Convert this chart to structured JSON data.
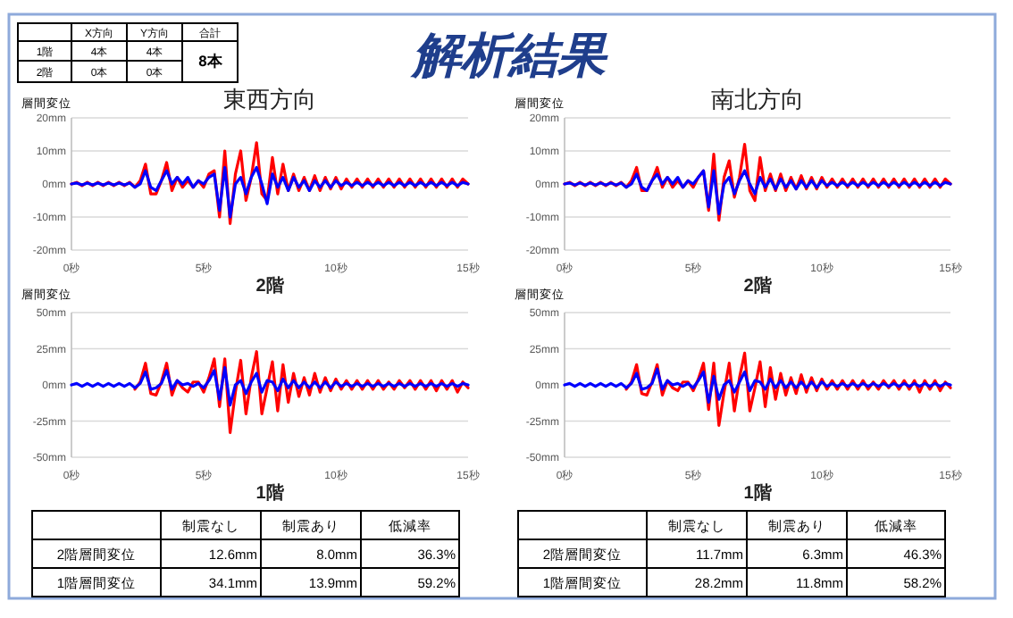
{
  "chart_data": [
    {
      "type": "other",
      "title": "解析結果",
      "categories": [
        "X方向",
        "Y方向",
        "合計"
      ],
      "y_categories": [
        "1階",
        "2階"
      ],
      "cell_labels": [
        [
          "4本",
          "4本",
          "8本"
        ],
        [
          "0本",
          "0本",
          null
        ]
      ]
    },
    {
      "type": "line",
      "title": "東西方向",
      "xlabel": "2階",
      "ylabel": "層間変位",
      "grid": "y",
      "xlim": [
        0,
        15
      ],
      "ylim": [
        -20,
        20
      ],
      "xticks": [
        {
          "value": 0,
          "label": "0秒"
        },
        {
          "value": 5,
          "label": "5秒"
        },
        {
          "value": 10,
          "label": "10秒"
        },
        {
          "value": 15,
          "label": "15秒"
        }
      ],
      "yticks": [
        {
          "value": -20,
          "label": "-20mm"
        },
        {
          "value": -10,
          "label": "-10mm"
        },
        {
          "value": 0,
          "label": "0mm"
        },
        {
          "value": 10,
          "label": "10mm"
        },
        {
          "value": 20,
          "label": "20mm"
        }
      ],
      "x": [
        0,
        0.2,
        0.4,
        0.6,
        0.8,
        1,
        1.2,
        1.4,
        1.6,
        1.8,
        2,
        2.2,
        2.4,
        2.6,
        2.8,
        3,
        3.2,
        3.4,
        3.6,
        3.8,
        4,
        4.2,
        4.4,
        4.6,
        4.8,
        5,
        5.2,
        5.4,
        5.6,
        5.8,
        6,
        6.2,
        6.4,
        6.6,
        6.8,
        7,
        7.2,
        7.4,
        7.6,
        7.8,
        8,
        8.2,
        8.4,
        8.6,
        8.8,
        9,
        9.2,
        9.4,
        9.6,
        9.8,
        10,
        10.2,
        10.4,
        10.6,
        10.8,
        11,
        11.2,
        11.4,
        11.6,
        11.8,
        12,
        12.2,
        12.4,
        12.6,
        12.8,
        13,
        13.2,
        13.4,
        13.6,
        13.8,
        14,
        14.2,
        14.4,
        14.6,
        14.8,
        15
      ],
      "series": [
        {
          "color": "#ff0000",
          "values": [
            0,
            0.5,
            -0.5,
            0.5,
            -0.5,
            0.5,
            -0.5,
            0.5,
            -0.5,
            0.5,
            -0.5,
            0.5,
            -1,
            1,
            6,
            -3,
            -3,
            1,
            6.5,
            -2,
            2,
            -1,
            1,
            -1,
            1,
            -1,
            3,
            4,
            -10,
            10,
            -12,
            3,
            10,
            -5,
            2,
            12.5,
            -3,
            -5,
            8,
            -3,
            6,
            -2,
            3,
            -2,
            2,
            -2,
            2.5,
            -2,
            2,
            -1.5,
            2,
            -1.5,
            1.5,
            -1,
            1.5,
            -1,
            1.5,
            -1,
            1.5,
            -1,
            1.5,
            -1,
            1.5,
            -1,
            1.5,
            -1,
            1.5,
            -1,
            1.5,
            -1,
            1.5,
            -1,
            1.5,
            -1,
            1.5,
            0
          ]
        },
        {
          "color": "#0000ff",
          "values": [
            0,
            0.3,
            -0.3,
            0.3,
            -0.3,
            0.3,
            -0.3,
            0.3,
            -0.3,
            0.3,
            -0.3,
            0.3,
            -1,
            0,
            4,
            -1,
            -2,
            1,
            4,
            0,
            2,
            0,
            2,
            -1,
            1,
            0,
            2,
            3,
            -8,
            5,
            -10,
            0,
            2,
            -3,
            2,
            5,
            0,
            -6,
            3,
            -1,
            2,
            -2,
            2,
            -1,
            1,
            -2,
            1,
            -1,
            1,
            -1,
            1,
            -0.5,
            0.5,
            -0.5,
            0.5,
            -0.5,
            0.5,
            -0.5,
            0.5,
            -0.5,
            0.5,
            -0.5,
            0.5,
            -0.5,
            0.5,
            -0.5,
            0.5,
            -0.5,
            0.5,
            -0.5,
            0.5,
            -0.5,
            0.5,
            -0.5,
            0.5,
            0
          ]
        }
      ]
    },
    {
      "type": "line",
      "title": "南北方向",
      "xlabel": "2階",
      "ylabel": "層間変位",
      "grid": "y",
      "xlim": [
        0,
        15
      ],
      "ylim": [
        -20,
        20
      ],
      "xticks": [
        {
          "value": 0,
          "label": "0秒"
        },
        {
          "value": 5,
          "label": "5秒"
        },
        {
          "value": 10,
          "label": "10秒"
        },
        {
          "value": 15,
          "label": "15秒"
        }
      ],
      "yticks": [
        {
          "value": -20,
          "label": "-20mm"
        },
        {
          "value": -10,
          "label": "-10mm"
        },
        {
          "value": 0,
          "label": "0mm"
        },
        {
          "value": 10,
          "label": "10mm"
        },
        {
          "value": 20,
          "label": "20mm"
        }
      ],
      "x": [
        0,
        0.2,
        0.4,
        0.6,
        0.8,
        1,
        1.2,
        1.4,
        1.6,
        1.8,
        2,
        2.2,
        2.4,
        2.6,
        2.8,
        3,
        3.2,
        3.4,
        3.6,
        3.8,
        4,
        4.2,
        4.4,
        4.6,
        4.8,
        5,
        5.2,
        5.4,
        5.6,
        5.8,
        6,
        6.2,
        6.4,
        6.6,
        6.8,
        7,
        7.2,
        7.4,
        7.6,
        7.8,
        8,
        8.2,
        8.4,
        8.6,
        8.8,
        9,
        9.2,
        9.4,
        9.6,
        9.8,
        10,
        10.2,
        10.4,
        10.6,
        10.8,
        11,
        11.2,
        11.4,
        11.6,
        11.8,
        12,
        12.2,
        12.4,
        12.6,
        12.8,
        13,
        13.2,
        13.4,
        13.6,
        13.8,
        14,
        14.2,
        14.4,
        14.6,
        14.8,
        15
      ],
      "series": [
        {
          "color": "#ff0000",
          "values": [
            0,
            0.5,
            -0.5,
            0.5,
            -0.5,
            0.5,
            -0.5,
            0.5,
            -0.5,
            0.5,
            -0.5,
            0.5,
            -1,
            1,
            5,
            -2,
            -2,
            1,
            5,
            -1,
            2,
            -1,
            1,
            -1,
            1,
            -1,
            2,
            4,
            -8,
            9,
            -11,
            2,
            7,
            -4,
            2,
            12,
            -2,
            -5,
            8,
            -2,
            3,
            -2,
            3,
            -2,
            2,
            -1.5,
            2.5,
            -1.5,
            2,
            -1.5,
            2,
            -1,
            1.5,
            -1,
            1.5,
            -1,
            1.5,
            -1,
            1.5,
            -1,
            1.5,
            -1,
            1.5,
            -1,
            1.5,
            -1,
            1.5,
            -1,
            1.5,
            -1,
            1.5,
            -1,
            1.5,
            -1,
            1.5,
            0
          ]
        },
        {
          "color": "#0000ff",
          "values": [
            0,
            0.3,
            -0.3,
            0.3,
            -0.3,
            0.3,
            -0.3,
            0.3,
            -0.3,
            0.3,
            -0.3,
            0.3,
            -1,
            0,
            3,
            -1,
            -2,
            1,
            3,
            0,
            2,
            0,
            2,
            -1,
            1,
            0,
            2,
            4,
            -7,
            4,
            -9,
            0,
            2,
            -3,
            1,
            4,
            0,
            -3,
            2,
            -1,
            1.5,
            -1.5,
            1.5,
            -1,
            1,
            -1.5,
            1,
            -1,
            1,
            -1,
            1,
            -0.5,
            0.5,
            -0.5,
            0.5,
            -0.5,
            0.5,
            -0.5,
            0.5,
            -0.5,
            0.5,
            -0.5,
            0.5,
            -0.5,
            0.5,
            -0.5,
            0.5,
            -0.5,
            0.5,
            -0.5,
            0.5,
            -0.5,
            0.5,
            -0.5,
            0.5,
            0
          ]
        }
      ]
    },
    {
      "type": "line",
      "xlabel": "1階",
      "ylabel": "層間変位",
      "grid": "y",
      "xlim": [
        0,
        15
      ],
      "ylim": [
        -50,
        50
      ],
      "xticks": [
        {
          "value": 0,
          "label": "0秒"
        },
        {
          "value": 5,
          "label": "5秒"
        },
        {
          "value": 10,
          "label": "10秒"
        },
        {
          "value": 15,
          "label": "15秒"
        }
      ],
      "yticks": [
        {
          "value": -50,
          "label": "-50mm"
        },
        {
          "value": -25,
          "label": "-25mm"
        },
        {
          "value": 0,
          "label": "0mm"
        },
        {
          "value": 25,
          "label": "25mm"
        },
        {
          "value": 50,
          "label": "50mm"
        }
      ],
      "x": [
        0,
        0.2,
        0.4,
        0.6,
        0.8,
        1,
        1.2,
        1.4,
        1.6,
        1.8,
        2,
        2.2,
        2.4,
        2.6,
        2.8,
        3,
        3.2,
        3.4,
        3.6,
        3.8,
        4,
        4.2,
        4.4,
        4.6,
        4.8,
        5,
        5.2,
        5.4,
        5.6,
        5.8,
        6,
        6.2,
        6.4,
        6.6,
        6.8,
        7,
        7.2,
        7.4,
        7.6,
        7.8,
        8,
        8.2,
        8.4,
        8.6,
        8.8,
        9,
        9.2,
        9.4,
        9.6,
        9.8,
        10,
        10.2,
        10.4,
        10.6,
        10.8,
        11,
        11.2,
        11.4,
        11.6,
        11.8,
        12,
        12.2,
        12.4,
        12.6,
        12.8,
        13,
        13.2,
        13.4,
        13.6,
        13.8,
        14,
        14.2,
        14.4,
        14.6,
        14.8,
        15
      ],
      "series": [
        {
          "color": "#ff0000",
          "values": [
            null,
            null,
            null,
            null,
            null,
            null,
            null,
            null,
            null,
            null,
            null,
            null,
            -3,
            2,
            15,
            -6,
            -7,
            2,
            15,
            -7,
            3,
            -2,
            -5,
            2,
            2,
            -5,
            5,
            18,
            -15,
            18,
            -33,
            -5,
            17,
            -20,
            5,
            23,
            -20,
            -2,
            16,
            -18,
            14,
            -12,
            8,
            -8,
            5,
            -7,
            8,
            -5,
            5,
            -4,
            4,
            -3,
            3,
            -3,
            3,
            -3,
            3,
            -3,
            3,
            -3,
            2,
            -3,
            3,
            -2,
            3,
            -3,
            3,
            -3,
            3,
            -4,
            3,
            -3,
            3,
            -5,
            2,
            -2
          ]
        },
        {
          "color": "#0000ff",
          "values": [
            0,
            1,
            -1,
            1,
            -1,
            1,
            -1,
            1,
            -1,
            1,
            -1,
            1,
            -2,
            1,
            9,
            -3,
            -2,
            1,
            10,
            -3,
            3,
            0,
            1,
            -1,
            1,
            -2,
            3,
            10,
            -10,
            12,
            -14,
            0,
            3,
            -6,
            2,
            8,
            -5,
            3,
            2,
            -4,
            4,
            -2,
            3,
            -2,
            2,
            -2,
            2,
            -2,
            2,
            -2,
            2,
            -1,
            1,
            -1,
            1,
            -1,
            1,
            -1,
            1,
            -1,
            1,
            -1,
            1,
            -1,
            1,
            -1,
            1,
            -1,
            1,
            -1,
            1,
            -1,
            1,
            -1,
            1,
            0
          ]
        }
      ]
    },
    {
      "type": "line",
      "xlabel": "1階",
      "ylabel": "層間変位",
      "grid": "y",
      "xlim": [
        0,
        15
      ],
      "ylim": [
        -50,
        50
      ],
      "xticks": [
        {
          "value": 0,
          "label": "0秒"
        },
        {
          "value": 5,
          "label": "5秒"
        },
        {
          "value": 10,
          "label": "10秒"
        },
        {
          "value": 15,
          "label": "15秒"
        }
      ],
      "yticks": [
        {
          "value": -50,
          "label": "-50mm"
        },
        {
          "value": -25,
          "label": "-25mm"
        },
        {
          "value": 0,
          "label": "0mm"
        },
        {
          "value": 25,
          "label": "25mm"
        },
        {
          "value": 50,
          "label": "50mm"
        }
      ],
      "x": [
        0,
        0.2,
        0.4,
        0.6,
        0.8,
        1,
        1.2,
        1.4,
        1.6,
        1.8,
        2,
        2.2,
        2.4,
        2.6,
        2.8,
        3,
        3.2,
        3.4,
        3.6,
        3.8,
        4,
        4.2,
        4.4,
        4.6,
        4.8,
        5,
        5.2,
        5.4,
        5.6,
        5.8,
        6,
        6.2,
        6.4,
        6.6,
        6.8,
        7,
        7.2,
        7.4,
        7.6,
        7.8,
        8,
        8.2,
        8.4,
        8.6,
        8.8,
        9,
        9.2,
        9.4,
        9.6,
        9.8,
        10,
        10.2,
        10.4,
        10.6,
        10.8,
        11,
        11.2,
        11.4,
        11.6,
        11.8,
        12,
        12.2,
        12.4,
        12.6,
        12.8,
        13,
        13.2,
        13.4,
        13.6,
        13.8,
        14,
        14.2,
        14.4,
        14.6,
        14.8,
        15
      ],
      "series": [
        {
          "color": "#ff0000",
          "values": [
            null,
            null,
            null,
            null,
            null,
            null,
            null,
            null,
            null,
            null,
            null,
            null,
            -3,
            2,
            14,
            -6,
            -7,
            2,
            14,
            -7,
            3,
            -2,
            -4,
            2,
            2,
            -4,
            4,
            15,
            -17,
            15,
            -28,
            -5,
            15,
            -18,
            5,
            22,
            -18,
            -2,
            16,
            -15,
            12,
            -10,
            8,
            -7,
            5,
            -6,
            7,
            -5,
            5,
            -4,
            4,
            -3,
            3,
            -3,
            3,
            -3,
            3,
            -3,
            3,
            -3,
            2,
            -3,
            3,
            -2,
            3,
            -3,
            3,
            -3,
            3,
            -5,
            3,
            -3,
            3,
            -4,
            2,
            -2
          ]
        },
        {
          "color": "#0000ff",
          "values": [
            0,
            1,
            -1,
            1,
            -1,
            1,
            -1,
            1,
            -1,
            1,
            -1,
            1,
            -2,
            1,
            8,
            -3,
            -2,
            1,
            11,
            -3,
            3,
            0,
            1,
            -1,
            1,
            -2,
            3,
            9,
            -12,
            6,
            -10,
            0,
            3,
            -5,
            2,
            9,
            -4,
            3,
            2,
            -3,
            4,
            -2,
            3,
            -2,
            2,
            -2,
            2,
            -2,
            2,
            -2,
            2,
            -1,
            1,
            -1,
            1,
            -1,
            1,
            -1,
            1,
            -1,
            1,
            -1,
            1,
            -1,
            1,
            -1,
            1,
            -1,
            1,
            -1,
            1,
            -1,
            1,
            -1,
            1,
            0
          ]
        }
      ]
    },
    {
      "type": "other",
      "categories": [
        "制震なし",
        "制震あり",
        "低減率"
      ],
      "y_categories": [
        "2階層間変位",
        "1階層間変位"
      ],
      "cell_labels": [
        [
          "12.6mm",
          "8.0mm",
          "36.3%"
        ],
        [
          "34.1mm",
          "13.9mm",
          "59.2%"
        ]
      ]
    },
    {
      "type": "other",
      "categories": [
        "制震なし",
        "制震あり",
        "低減率"
      ],
      "y_categories": [
        "2階層間変位",
        "1階層間変位"
      ],
      "cell_labels": [
        [
          "11.7mm",
          "6.3mm",
          "46.3%"
        ],
        [
          "28.2mm",
          "11.8mm",
          "58.2%"
        ]
      ]
    }
  ]
}
